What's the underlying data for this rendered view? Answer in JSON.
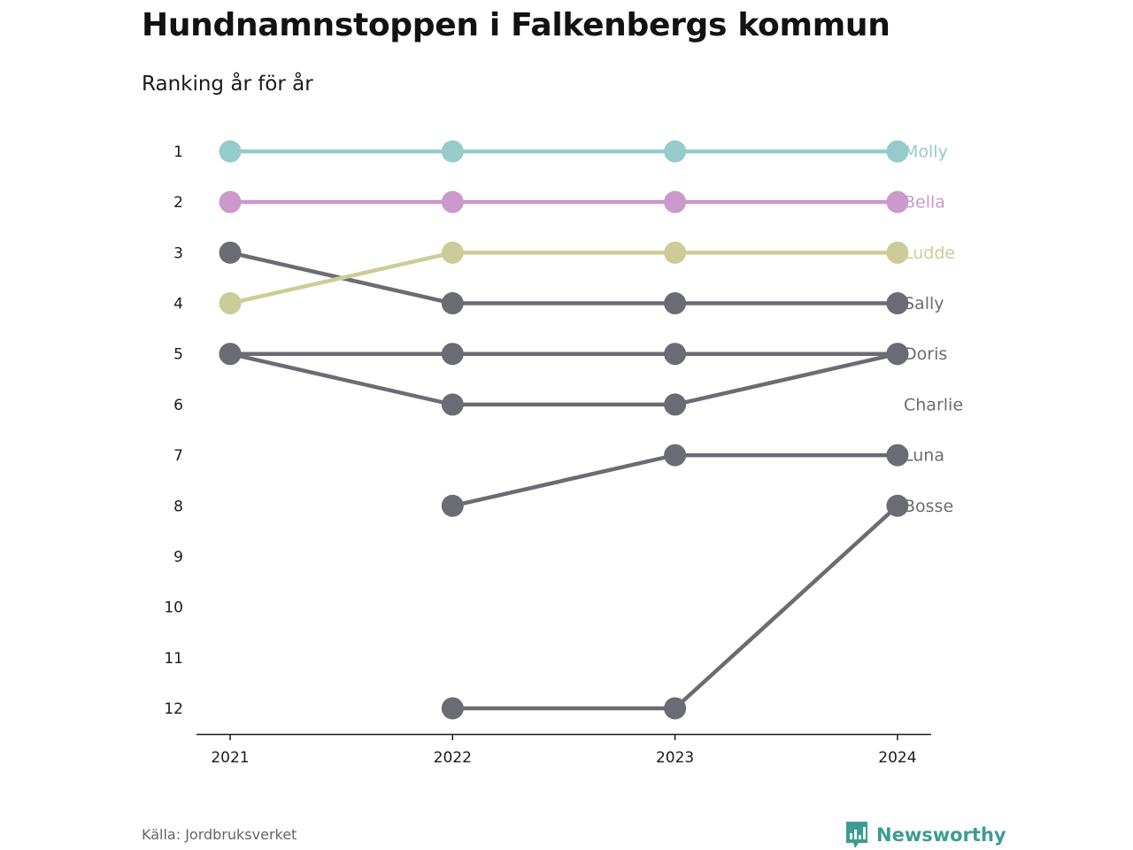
{
  "title": "Hundnamnstoppen i Falkenbergs kommun",
  "subtitle": "Ranking år för år",
  "source": "Källa: Jordbruksverket",
  "brand": {
    "name": "Newsworthy",
    "icon": "bar-chart-speech-bubble-icon",
    "color": "#3d9c94"
  },
  "chart_data": {
    "type": "line",
    "subtype": "bump",
    "x": [
      "2021",
      "2022",
      "2023",
      "2024"
    ],
    "y_ticks": [
      1,
      2,
      3,
      4,
      5,
      6,
      7,
      8,
      9,
      10,
      11,
      12
    ],
    "ylim": [
      1,
      12
    ],
    "y_inverted": true,
    "grid": false,
    "legend": "inline-right",
    "series": [
      {
        "name": "Molly",
        "color": "#95cbca",
        "values": [
          1,
          1,
          1,
          1
        ]
      },
      {
        "name": "Bella",
        "color": "#cc99cc",
        "values": [
          2,
          2,
          2,
          2
        ]
      },
      {
        "name": "Ludde",
        "color": "#cccc99",
        "values": [
          4,
          3,
          3,
          3
        ]
      },
      {
        "name": "Sally",
        "color": "#6b6b73",
        "values": [
          3,
          4,
          4,
          4
        ]
      },
      {
        "name": "Doris",
        "color": "#6b6b73",
        "values": [
          5,
          5,
          5,
          5
        ]
      },
      {
        "name": "Charlie",
        "color": "#6b6b73",
        "values": [
          5,
          6,
          6,
          5
        ]
      },
      {
        "name": "Luna",
        "color": "#6b6b73",
        "values": [
          null,
          8,
          7,
          7
        ]
      },
      {
        "name": "Bosse",
        "color": "#6b6b73",
        "values": [
          null,
          12,
          12,
          8
        ]
      }
    ],
    "end_labels": [
      {
        "text": "Molly",
        "rank": 1,
        "color": "#95cbca"
      },
      {
        "text": "Bella",
        "rank": 2,
        "color": "#cc99cc"
      },
      {
        "text": "Ludde",
        "rank": 3,
        "color": "#cccc99"
      },
      {
        "text": "Sally",
        "rank": 4,
        "color": "#6b6b73"
      },
      {
        "text": "Doris",
        "rank": 5,
        "color": "#6b6b73"
      },
      {
        "text": "Charlie",
        "rank": 6,
        "color": "#6b6b73"
      },
      {
        "text": "Luna",
        "rank": 7,
        "color": "#6b6b73"
      },
      {
        "text": "Bosse",
        "rank": 8,
        "color": "#6b6b73"
      }
    ]
  }
}
